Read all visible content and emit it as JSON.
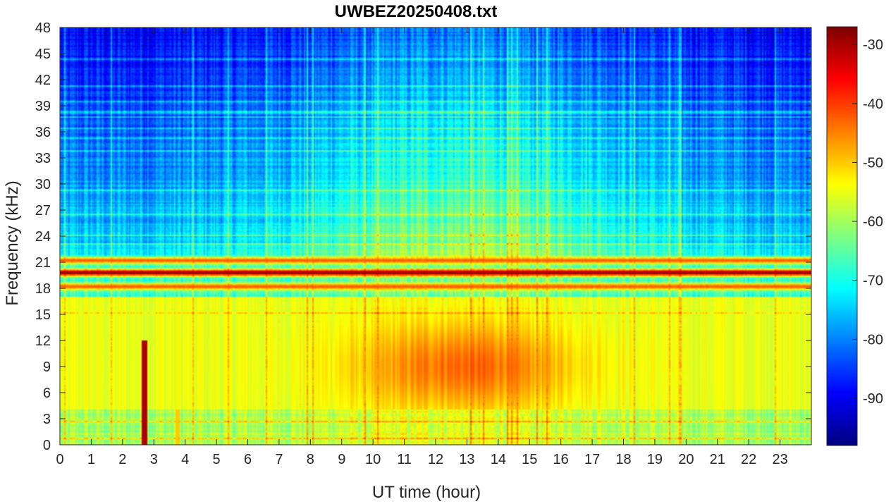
{
  "chart_data": {
    "type": "heatmap",
    "title": "UWBEZ20250408.txt",
    "xlabel": "UT time (hour)",
    "ylabel": "Frequency (kHz)",
    "xlim": [
      0,
      24
    ],
    "ylim": [
      0,
      48
    ],
    "x_ticks": [
      "0",
      "1",
      "2",
      "3",
      "4",
      "5",
      "6",
      "7",
      "8",
      "9",
      "10",
      "11",
      "12",
      "13",
      "14",
      "15",
      "16",
      "17",
      "18",
      "19",
      "20",
      "21",
      "22",
      "23"
    ],
    "y_ticks": [
      "0",
      "3",
      "6",
      "9",
      "12",
      "15",
      "18",
      "21",
      "24",
      "27",
      "30",
      "33",
      "36",
      "39",
      "42",
      "45",
      "48"
    ],
    "colorbar": {
      "colormap": "jet",
      "range": [
        -98,
        -27
      ],
      "ticks": [
        "-30",
        "-40",
        "-50",
        "-60",
        "-70",
        "-80",
        "-90"
      ]
    },
    "features": [
      {
        "kind": "narrowband-line",
        "freq_khz": 19.8,
        "level_db": -28
      },
      {
        "kind": "narrowband-line",
        "freq_khz": 21.2,
        "level_db": -42
      },
      {
        "kind": "narrowband-line",
        "freq_khz": 18.2,
        "level_db": -42
      },
      {
        "kind": "broadband-emission",
        "freq_khz": [
          4,
          17
        ],
        "time_hours": [
          9,
          17
        ],
        "peak_freq_khz": 9,
        "peak_level_db": -43
      },
      {
        "kind": "impulse",
        "time_hour": 2.7,
        "freq_khz": [
          0,
          12
        ],
        "level_db": -30
      },
      {
        "kind": "impulse",
        "time_hour": 3.75,
        "freq_khz": [
          0,
          4
        ],
        "level_db": -50
      }
    ]
  }
}
